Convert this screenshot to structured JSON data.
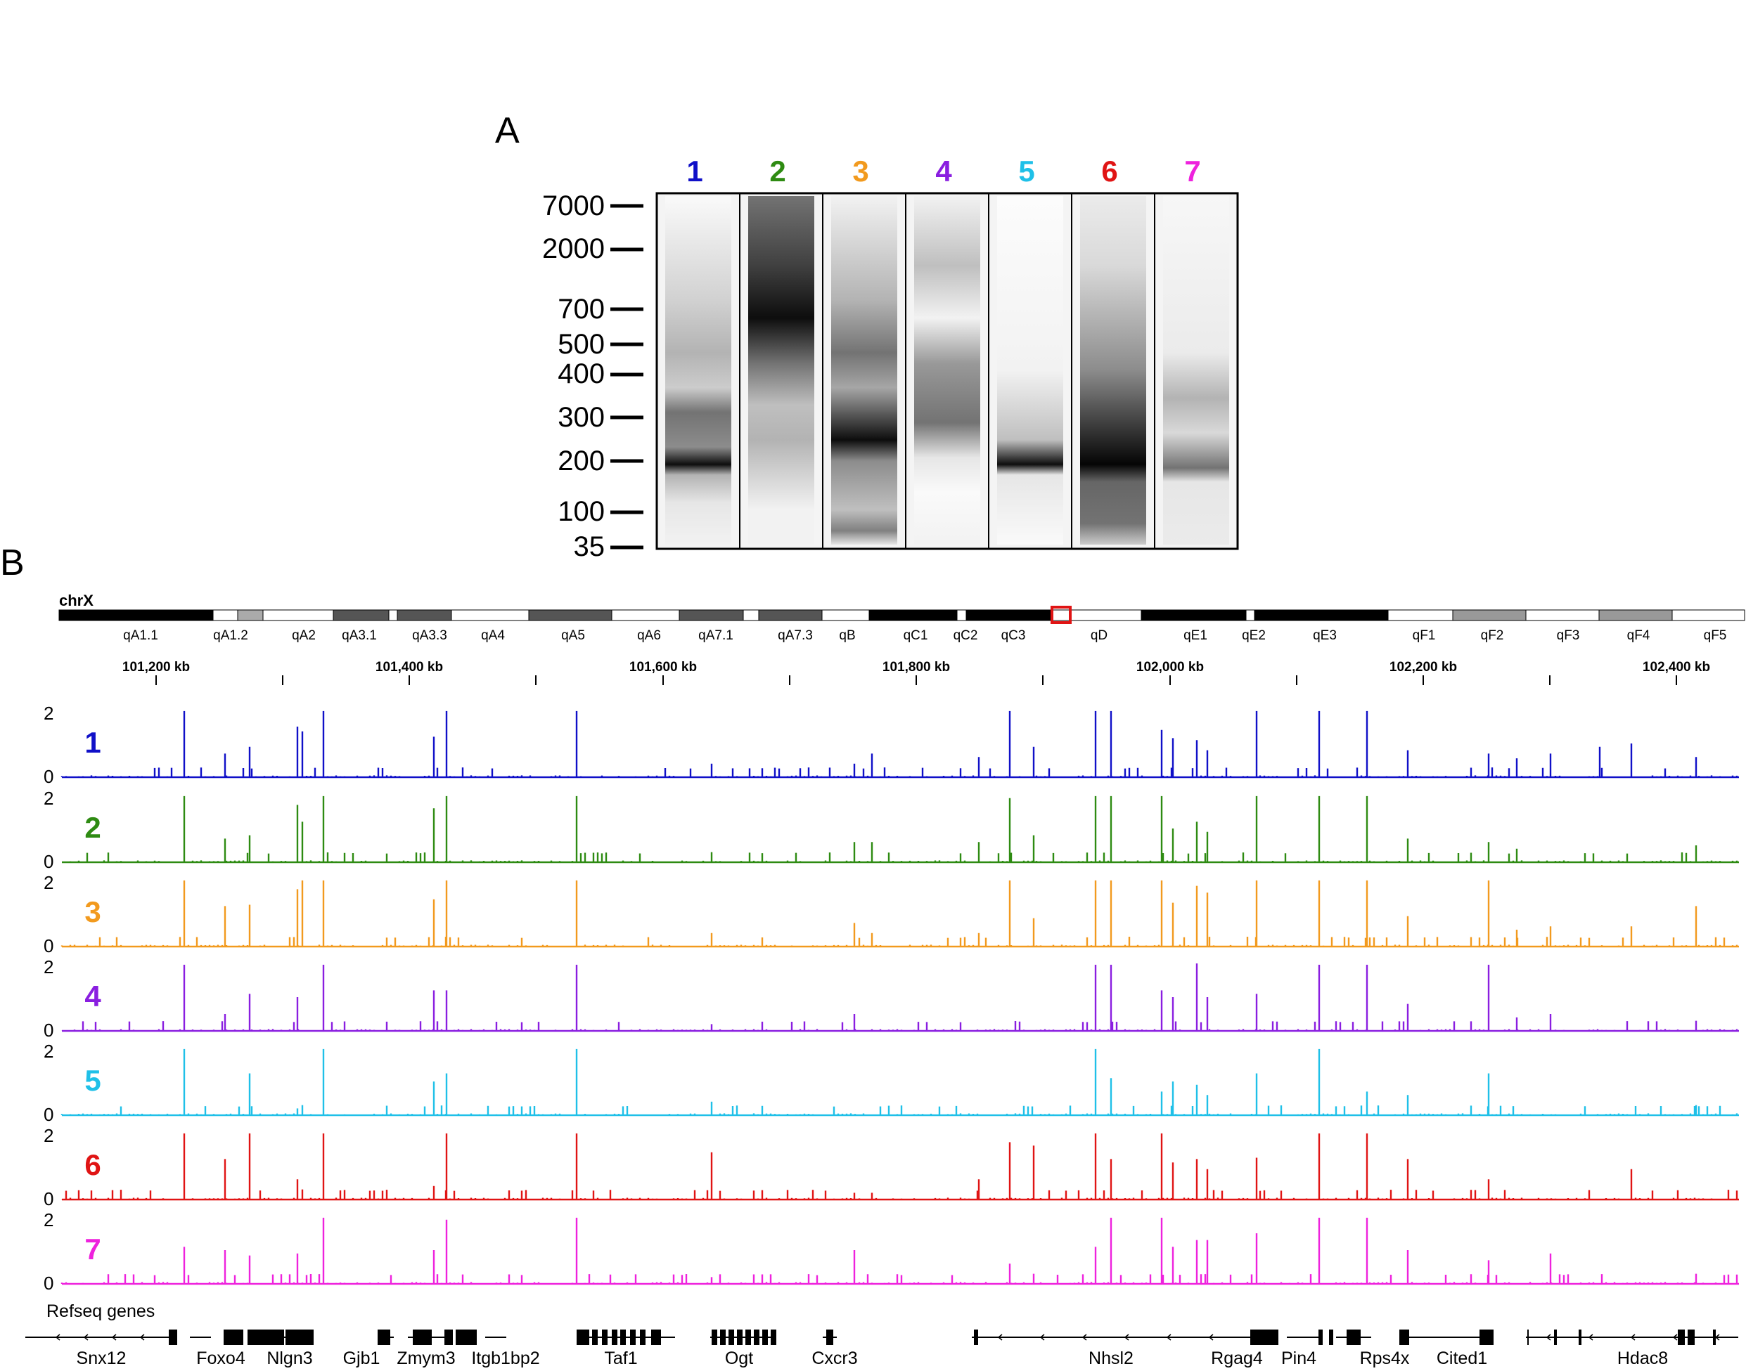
{
  "panel_a": {
    "letter": "A",
    "lanes": [
      {
        "label": "1",
        "color": "#1010c8"
      },
      {
        "label": "2",
        "color": "#2e8b12"
      },
      {
        "label": "3",
        "color": "#f29a1e"
      },
      {
        "label": "4",
        "color": "#8a1ee0"
      },
      {
        "label": "5",
        "color": "#1fc0e8"
      },
      {
        "label": "6",
        "color": "#e01414"
      },
      {
        "label": "7",
        "color": "#ee22dd"
      }
    ],
    "ladder": [
      "7000",
      "2000",
      "700",
      "500",
      "400",
      "300",
      "200",
      "100",
      "35"
    ]
  },
  "panel_b": {
    "letter": "B",
    "chromosome": "chrX",
    "bands": [
      {
        "name": "qA1.1",
        "stain": "gpos100"
      },
      {
        "name": "qA1.2",
        "stain": "gpos33"
      },
      {
        "name": "qA2",
        "stain": "gneg"
      },
      {
        "name": "qA3.1",
        "stain": "gpos75"
      },
      {
        "name": "qA3.3",
        "stain": "gpos75"
      },
      {
        "name": "qA4",
        "stain": "gneg"
      },
      {
        "name": "qA5",
        "stain": "gpos75"
      },
      {
        "name": "qA6",
        "stain": "gneg"
      },
      {
        "name": "qA7.1",
        "stain": "gpos75"
      },
      {
        "name": "qA7.3",
        "stain": "gpos75"
      },
      {
        "name": "qB",
        "stain": "gneg"
      },
      {
        "name": "qC1",
        "stain": "gpos100"
      },
      {
        "name": "qC2",
        "stain": "gneg"
      },
      {
        "name": "qC3",
        "stain": "gpos100"
      },
      {
        "name": "qD",
        "stain": "gneg"
      },
      {
        "name": "qE1",
        "stain": "gpos100"
      },
      {
        "name": "qE2",
        "stain": "gneg"
      },
      {
        "name": "qE3",
        "stain": "gpos100"
      },
      {
        "name": "qF1",
        "stain": "gneg"
      },
      {
        "name": "qF2",
        "stain": "gpos50"
      },
      {
        "name": "qF3",
        "stain": "gneg"
      },
      {
        "name": "qF4",
        "stain": "gpos50"
      },
      {
        "name": "qF5",
        "stain": "gneg"
      }
    ],
    "highlight_color": "#e01414",
    "coordinates": [
      "101,200 kb",
      "101,400 kb",
      "101,600 kb",
      "101,800 kb",
      "102,000 kb",
      "102,200 kb",
      "102,400 kb"
    ],
    "y_max_label": "2",
    "y_min_label": "0",
    "refseq_title": "Refseq genes",
    "genes": [
      "Snx12",
      "Foxo4",
      "Nlgn3",
      "Gjb1",
      "Zmym3",
      "Itgb1bp2",
      "Taf1",
      "Ogt",
      "Cxcr3",
      "Nhsl2",
      "Rgag4",
      "Pin4",
      "Rps4x",
      "Cited1",
      "Hdac8"
    ]
  }
}
